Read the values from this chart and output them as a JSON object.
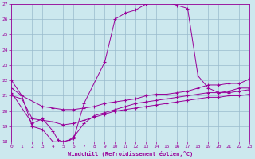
{
  "xlabel": "Windchill (Refroidissement éolien,°C)",
  "ylabel": "",
  "bg_color": "#cce8ee",
  "line_color": "#990099",
  "grid_color": "#99bbcc",
  "xlim": [
    0,
    23
  ],
  "ylim": [
    18,
    27
  ],
  "yticks": [
    18,
    19,
    20,
    21,
    22,
    23,
    24,
    25,
    26,
    27
  ],
  "xticks": [
    0,
    1,
    2,
    3,
    4,
    5,
    6,
    7,
    8,
    9,
    10,
    11,
    12,
    13,
    14,
    15,
    16,
    17,
    18,
    19,
    20,
    21,
    22,
    23
  ],
  "lines": [
    {
      "x": [
        0,
        1,
        2,
        3,
        4,
        5,
        6,
        7,
        9,
        10,
        11,
        12,
        13,
        14,
        15,
        16,
        17,
        18,
        19,
        20,
        21,
        22,
        23
      ],
      "y": [
        22,
        21,
        19,
        18.8,
        18.0,
        18.0,
        18.2,
        20.5,
        23.2,
        26.0,
        26.4,
        26.6,
        27.0,
        27.3,
        27.1,
        26.9,
        26.7,
        22.3,
        21.5,
        21.2,
        21.3,
        21.5,
        21.5
      ]
    },
    {
      "x": [
        0,
        1,
        3,
        4,
        5,
        6,
        7,
        8,
        9,
        10,
        11,
        12,
        13,
        14,
        15,
        16,
        17,
        18,
        19,
        20,
        21,
        22,
        23
      ],
      "y": [
        21.5,
        21.0,
        20.3,
        20.2,
        20.1,
        20.1,
        20.2,
        20.3,
        20.5,
        20.6,
        20.7,
        20.8,
        21.0,
        21.1,
        21.1,
        21.2,
        21.3,
        21.5,
        21.7,
        21.7,
        21.8,
        21.8,
        22.1
      ]
    },
    {
      "x": [
        0,
        1,
        2,
        3,
        4,
        5,
        6,
        7,
        8,
        9,
        10,
        11,
        12,
        13,
        14,
        15,
        16,
        17,
        18,
        19,
        20,
        21,
        22,
        23
      ],
      "y": [
        21.0,
        20.8,
        19.5,
        19.4,
        19.3,
        19.1,
        19.2,
        19.4,
        19.6,
        19.8,
        20.0,
        20.1,
        20.2,
        20.3,
        20.4,
        20.5,
        20.6,
        20.7,
        20.8,
        20.9,
        20.9,
        21.0,
        21.0,
        21.1
      ]
    },
    {
      "x": [
        0,
        2,
        3,
        4,
        4.5,
        5,
        5.5,
        6,
        7,
        8,
        9,
        10,
        11,
        12,
        13,
        14,
        15,
        16,
        17,
        18,
        19,
        20,
        21,
        22,
        23
      ],
      "y": [
        21.2,
        19.2,
        19.5,
        18.7,
        18.1,
        18.0,
        18.1,
        18.3,
        19.2,
        19.7,
        19.9,
        20.1,
        20.3,
        20.5,
        20.6,
        20.7,
        20.8,
        20.9,
        21.0,
        21.1,
        21.2,
        21.2,
        21.2,
        21.3,
        21.4
      ]
    }
  ]
}
